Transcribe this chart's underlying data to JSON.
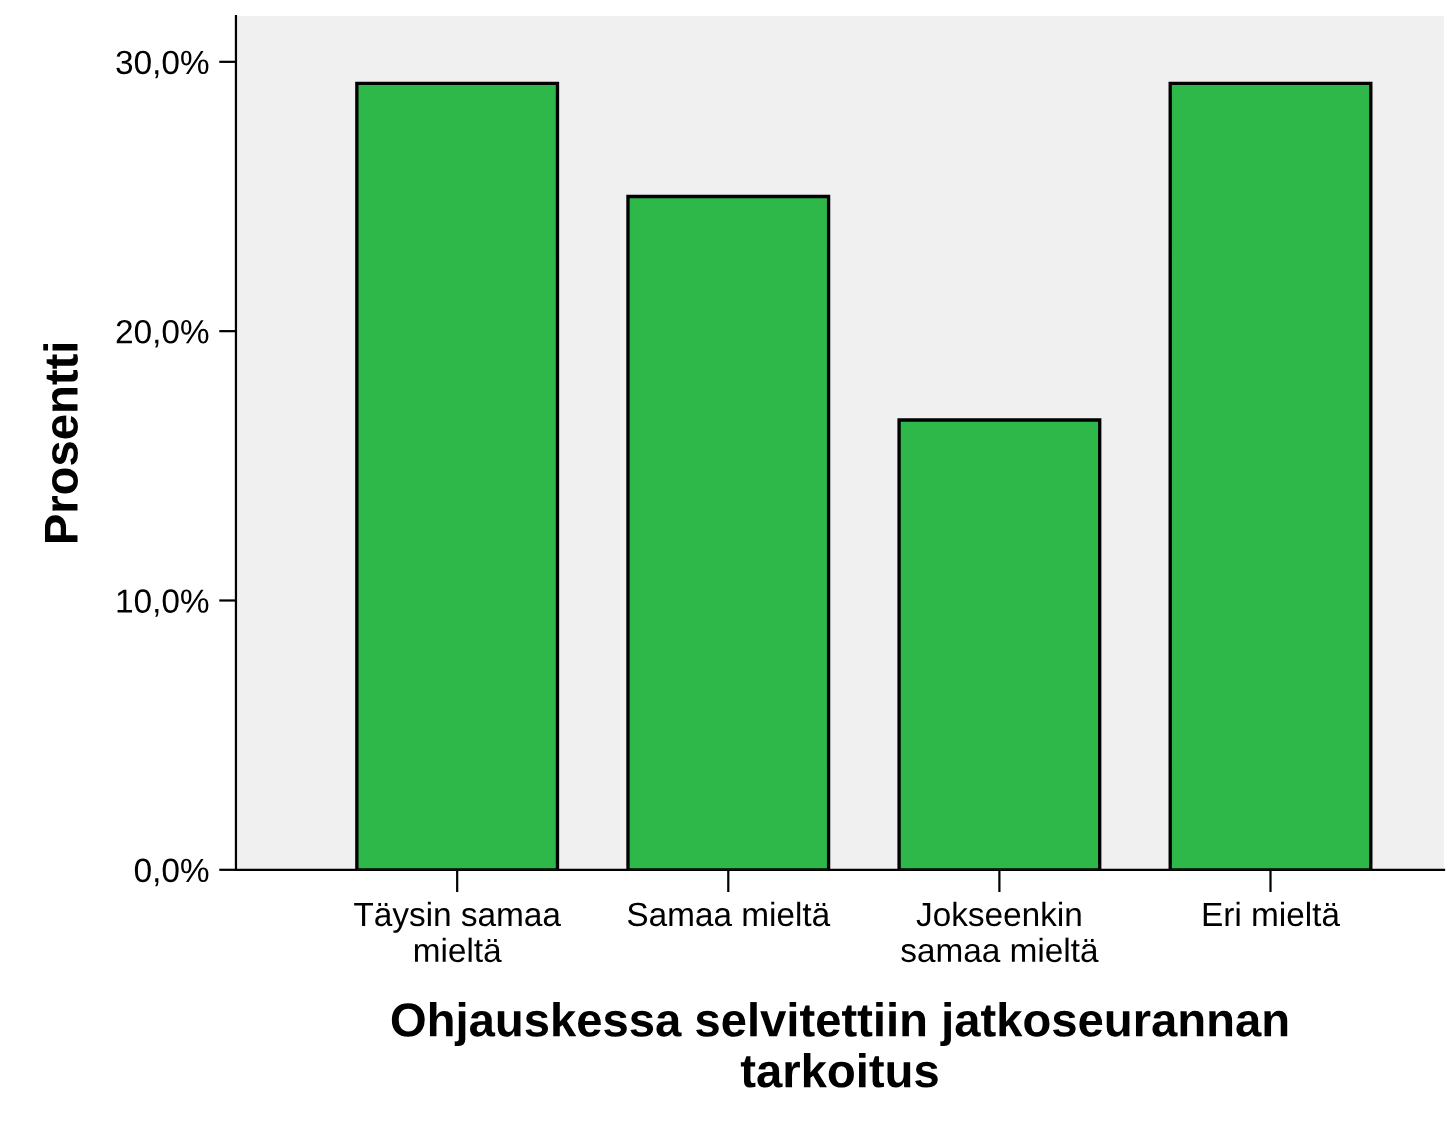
{
  "chart_data": {
    "type": "bar",
    "xlabel": "Ohjauskessa selvitettiin jatkoseurannan\ntarkoitus",
    "ylabel": "Prosentti",
    "categories": [
      "Täysin samaa\nmieltä",
      "Samaa mieltä",
      "Jokseenkin\nsamaa mieltä",
      "Eri mieltä"
    ],
    "values": [
      29.2,
      25.0,
      16.7,
      29.2
    ],
    "color": "#2eb84a",
    "ylim": [
      0,
      31.7
    ],
    "yticks": [
      {
        "value": 0,
        "label": "0,0%"
      },
      {
        "value": 10,
        "label": "10,0%"
      },
      {
        "value": 20,
        "label": "20,0%"
      },
      {
        "value": 30,
        "label": "30,0%"
      }
    ],
    "grid": false
  }
}
